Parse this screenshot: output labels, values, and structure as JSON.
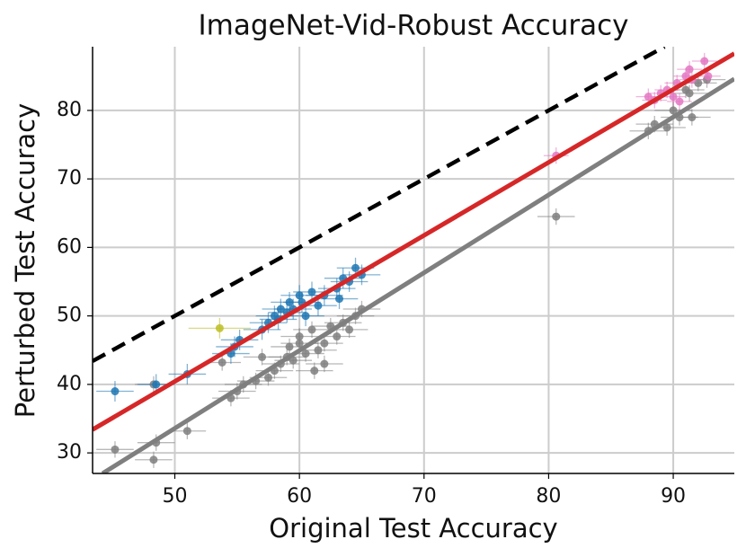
{
  "chart_data": {
    "type": "scatter",
    "title": "ImageNet-Vid-Robust Accuracy",
    "x_label": "Original Test Accuracy",
    "y_label": "Perturbed Test Accuracy",
    "xlim": [
      43.4,
      94.9
    ],
    "ylim": [
      27,
      89.3
    ],
    "xticks": [
      50,
      60,
      70,
      80,
      90
    ],
    "yticks": [
      30,
      40,
      50,
      60,
      70,
      80
    ],
    "grid": true,
    "lines": [
      {
        "color": "#000000",
        "dashed": true,
        "x": [
          43.4,
          89.3
        ],
        "y": [
          43.4,
          89.3
        ]
      },
      {
        "color": "#d62728",
        "dashed": false,
        "x": [
          43.4,
          94.9
        ],
        "y": [
          33.4,
          88.3
        ]
      },
      {
        "color": "#7f7f7f",
        "dashed": false,
        "x": [
          44.2,
          94.9
        ],
        "y": [
          27,
          84.6
        ]
      }
    ],
    "series": [
      {
        "color": "#7f7f7f",
        "xerr": 1.5,
        "yerr": 1.2,
        "x": [
          45.2,
          48.3,
          48.5,
          48.3,
          51,
          53.8,
          54.5,
          55,
          55.5,
          56.5,
          57,
          57.5,
          58,
          58.5,
          59,
          59.2,
          59.5,
          60,
          60,
          60.5,
          61,
          61.2,
          61.5,
          62,
          62,
          62.5,
          63,
          63.5,
          64,
          64.5,
          65,
          80.6,
          88,
          88.5,
          89.5,
          90,
          90.5,
          91,
          91.3,
          92,
          92.7,
          91.5
        ],
        "y": [
          30.5,
          29,
          31.5,
          40,
          33.2,
          43.2,
          38,
          39,
          40,
          40.5,
          44,
          41,
          42,
          43,
          44,
          45.5,
          43.5,
          46,
          47,
          44.5,
          48,
          42,
          45,
          46,
          43,
          48.5,
          47,
          49,
          48,
          50,
          51,
          64.5,
          77,
          78,
          77.5,
          80,
          79,
          83,
          82.5,
          84,
          84.5,
          79
        ]
      },
      {
        "color": "#1f77b4",
        "xerr": 1.5,
        "yerr": 1.5,
        "x": [
          45.2,
          48.5,
          51,
          54.5,
          54.8,
          55.2,
          57,
          57.5,
          58,
          58.5,
          59,
          59.2,
          59.5,
          60,
          60.2,
          60.5,
          61,
          61.5,
          62,
          63,
          63.5,
          64,
          64.5,
          65,
          63.2,
          58.3
        ],
        "y": [
          39,
          40,
          41.5,
          44.5,
          45.5,
          46.5,
          48,
          49,
          50,
          51,
          50.5,
          52,
          51,
          53,
          52,
          50,
          53.5,
          51.5,
          53,
          54,
          55.5,
          55,
          57,
          56,
          52.5,
          49.5
        ]
      },
      {
        "color": "#bcbd22",
        "xerr": 2.5,
        "yerr": 1.5,
        "x": [
          53.6
        ],
        "y": [
          48.2
        ]
      },
      {
        "color": "#e377c2",
        "xerr": 1.0,
        "yerr": 1.2,
        "x": [
          80.6,
          88,
          88.5,
          89,
          89.5,
          90,
          90.3,
          90.5,
          91,
          91.3,
          91.5,
          92.5,
          92.8
        ],
        "y": [
          73.4,
          82,
          81.5,
          82.5,
          83,
          82,
          84,
          81.3,
          85,
          86,
          84.5,
          87.2,
          85
        ]
      }
    ]
  }
}
